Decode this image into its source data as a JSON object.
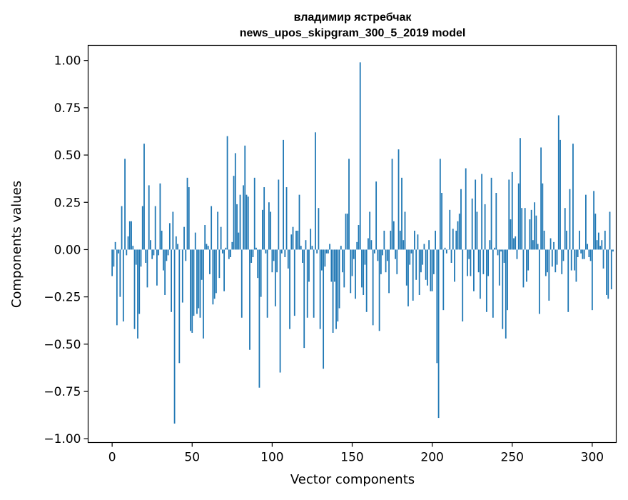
{
  "chart_data": {
    "type": "bar",
    "title_line1": "владимир ястребчак",
    "title_line2": "news_upos_skipgram_300_5_2019 model",
    "xlabel": "Vector components",
    "ylabel": "Components values",
    "xlim": [
      -15,
      315
    ],
    "ylim": [
      -1.02,
      1.08
    ],
    "xticks": [
      0,
      50,
      100,
      150,
      200,
      250,
      300
    ],
    "xtick_labels": [
      "0",
      "50",
      "100",
      "150",
      "200",
      "250",
      "300"
    ],
    "yticks": [
      1.0,
      0.75,
      0.5,
      0.25,
      0.0,
      -0.25,
      -0.5,
      -0.75,
      -1.0
    ],
    "ytick_labels": [
      "1.00",
      "0.75",
      "0.50",
      "0.25",
      "0.00",
      "−0.25",
      "−0.50",
      "−0.75",
      "−1.00"
    ],
    "grid": false,
    "bar_color": "#1f77b4",
    "values": [
      -0.14,
      -0.09,
      0.04,
      -0.4,
      -0.02,
      -0.25,
      0.23,
      -0.38,
      0.48,
      -0.03,
      0.07,
      0.15,
      0.15,
      0.02,
      -0.42,
      -0.08,
      -0.47,
      -0.34,
      -0.09,
      0.23,
      0.56,
      -0.07,
      -0.2,
      0.34,
      0.05,
      -0.05,
      -0.03,
      0.23,
      -0.19,
      -0.03,
      0.35,
      0.1,
      -0.11,
      -0.24,
      -0.06,
      -0.03,
      0.14,
      -0.33,
      0.2,
      -0.92,
      0.07,
      0.03,
      -0.6,
      0.0,
      -0.28,
      0.12,
      -0.06,
      0.38,
      0.33,
      -0.43,
      -0.44,
      -0.35,
      0.09,
      -0.34,
      -0.31,
      -0.36,
      -0.16,
      -0.47,
      0.13,
      0.03,
      0.02,
      -0.13,
      0.23,
      -0.29,
      -0.26,
      -0.23,
      0.2,
      -0.15,
      0.12,
      -0.02,
      -0.22,
      0.01,
      0.6,
      -0.05,
      -0.04,
      0.04,
      0.39,
      0.51,
      0.24,
      0.09,
      0.29,
      -0.36,
      0.34,
      0.55,
      0.29,
      0.28,
      -0.53,
      -0.07,
      -0.04,
      0.38,
      0.01,
      -0.15,
      -0.73,
      -0.25,
      0.21,
      0.33,
      -0.02,
      -0.36,
      0.25,
      0.2,
      -0.12,
      -0.06,
      -0.3,
      -0.12,
      0.37,
      -0.65,
      -0.02,
      0.58,
      -0.04,
      0.33,
      -0.1,
      -0.42,
      0.08,
      0.12,
      -0.35,
      0.1,
      0.1,
      0.29,
      0.02,
      -0.07,
      -0.52,
      0.05,
      -0.36,
      -0.17,
      0.11,
      0.02,
      -0.36,
      0.62,
      -0.02,
      0.22,
      -0.42,
      -0.11,
      -0.63,
      -0.09,
      -0.02,
      -0.02,
      0.03,
      -0.17,
      -0.44,
      -0.17,
      -0.42,
      -0.38,
      -0.31,
      0.02,
      -0.12,
      -0.2,
      0.19,
      0.19,
      0.48,
      -0.23,
      -0.14,
      -0.05,
      -0.26,
      0.04,
      0.13,
      0.99,
      -0.2,
      -0.24,
      -0.08,
      -0.33,
      0.06,
      0.2,
      0.05,
      -0.4,
      -0.02,
      0.36,
      -0.06,
      -0.43,
      -0.13,
      -0.03,
      0.1,
      -0.12,
      -0.06,
      -0.23,
      0.1,
      0.48,
      0.15,
      -0.05,
      -0.13,
      0.53,
      0.1,
      0.38,
      0.05,
      0.2,
      -0.19,
      -0.3,
      -0.08,
      -0.02,
      -0.27,
      0.1,
      -0.16,
      0.08,
      -0.24,
      -0.12,
      -0.08,
      0.03,
      -0.16,
      -0.19,
      0.05,
      -0.22,
      -0.22,
      -0.13,
      0.1,
      -0.6,
      -0.89,
      0.48,
      0.3,
      -0.32,
      0.01,
      -0.02,
      0.0,
      0.21,
      -0.07,
      0.11,
      -0.17,
      0.1,
      0.15,
      0.19,
      0.32,
      -0.38,
      0.0,
      0.43,
      -0.14,
      -0.05,
      -0.14,
      0.27,
      -0.22,
      0.37,
      0.2,
      -0.12,
      -0.26,
      0.4,
      -0.13,
      0.24,
      -0.33,
      -0.14,
      0.05,
      0.38,
      -0.36,
      0.01,
      0.3,
      -0.03,
      -0.19,
      -0.01,
      -0.42,
      -0.07,
      -0.47,
      -0.32,
      0.37,
      0.16,
      0.41,
      0.06,
      0.07,
      -0.05,
      0.35,
      0.59,
      0.22,
      -0.2,
      0.22,
      -0.17,
      -0.11,
      0.16,
      0.21,
      0.05,
      0.25,
      0.18,
      0.03,
      -0.34,
      0.54,
      0.35,
      0.1,
      -0.14,
      -0.12,
      -0.27,
      0.06,
      -0.09,
      0.04,
      -0.12,
      -0.08,
      0.71,
      0.58,
      -0.13,
      -0.06,
      0.22,
      0.1,
      -0.33,
      0.32,
      -0.11,
      0.56,
      -0.11,
      -0.17,
      -0.04,
      0.1,
      -0.02,
      -0.05,
      -0.05,
      0.29,
      0.03,
      -0.04,
      -0.06,
      -0.32,
      0.31,
      0.19,
      0.05,
      0.09,
      0.02,
      0.05,
      -0.1,
      0.1,
      -0.24,
      -0.26,
      0.2,
      -0.21,
      -0.01
    ]
  }
}
